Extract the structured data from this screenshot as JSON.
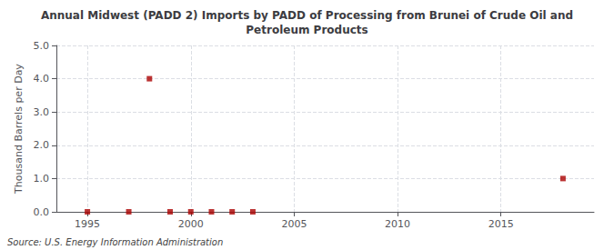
{
  "chart_data": {
    "type": "scatter",
    "title": "Annual Midwest (PADD 2) Imports by PADD of Processing from Brunei of Crude Oil and\nPetroleum Products",
    "ylabel": "Thousand Barrels per Day",
    "source": "Source: U.S. Energy Information Administration",
    "x": [
      1995,
      1997,
      1998,
      1999,
      2000,
      2001,
      2002,
      2003,
      2018
    ],
    "values": [
      0.0,
      0.0,
      4.0,
      0.0,
      0.0,
      0.0,
      0.0,
      0.0,
      1.0
    ],
    "color": "#aa0000",
    "marker": "square",
    "xlim": [
      1993.5,
      2019.5
    ],
    "xticks": [
      1995,
      2000,
      2005,
      2010,
      2015
    ],
    "ylim": [
      0.0,
      5.0
    ],
    "yticks": [
      {
        "value": 0,
        "label": "0.0"
      },
      {
        "value": 1,
        "label": "1.0"
      },
      {
        "value": 2,
        "label": "2.0"
      },
      {
        "value": 3,
        "label": "3.0"
      },
      {
        "value": 4,
        "label": "4.0"
      },
      {
        "value": 5,
        "label": "5.0"
      }
    ],
    "grid": true
  }
}
